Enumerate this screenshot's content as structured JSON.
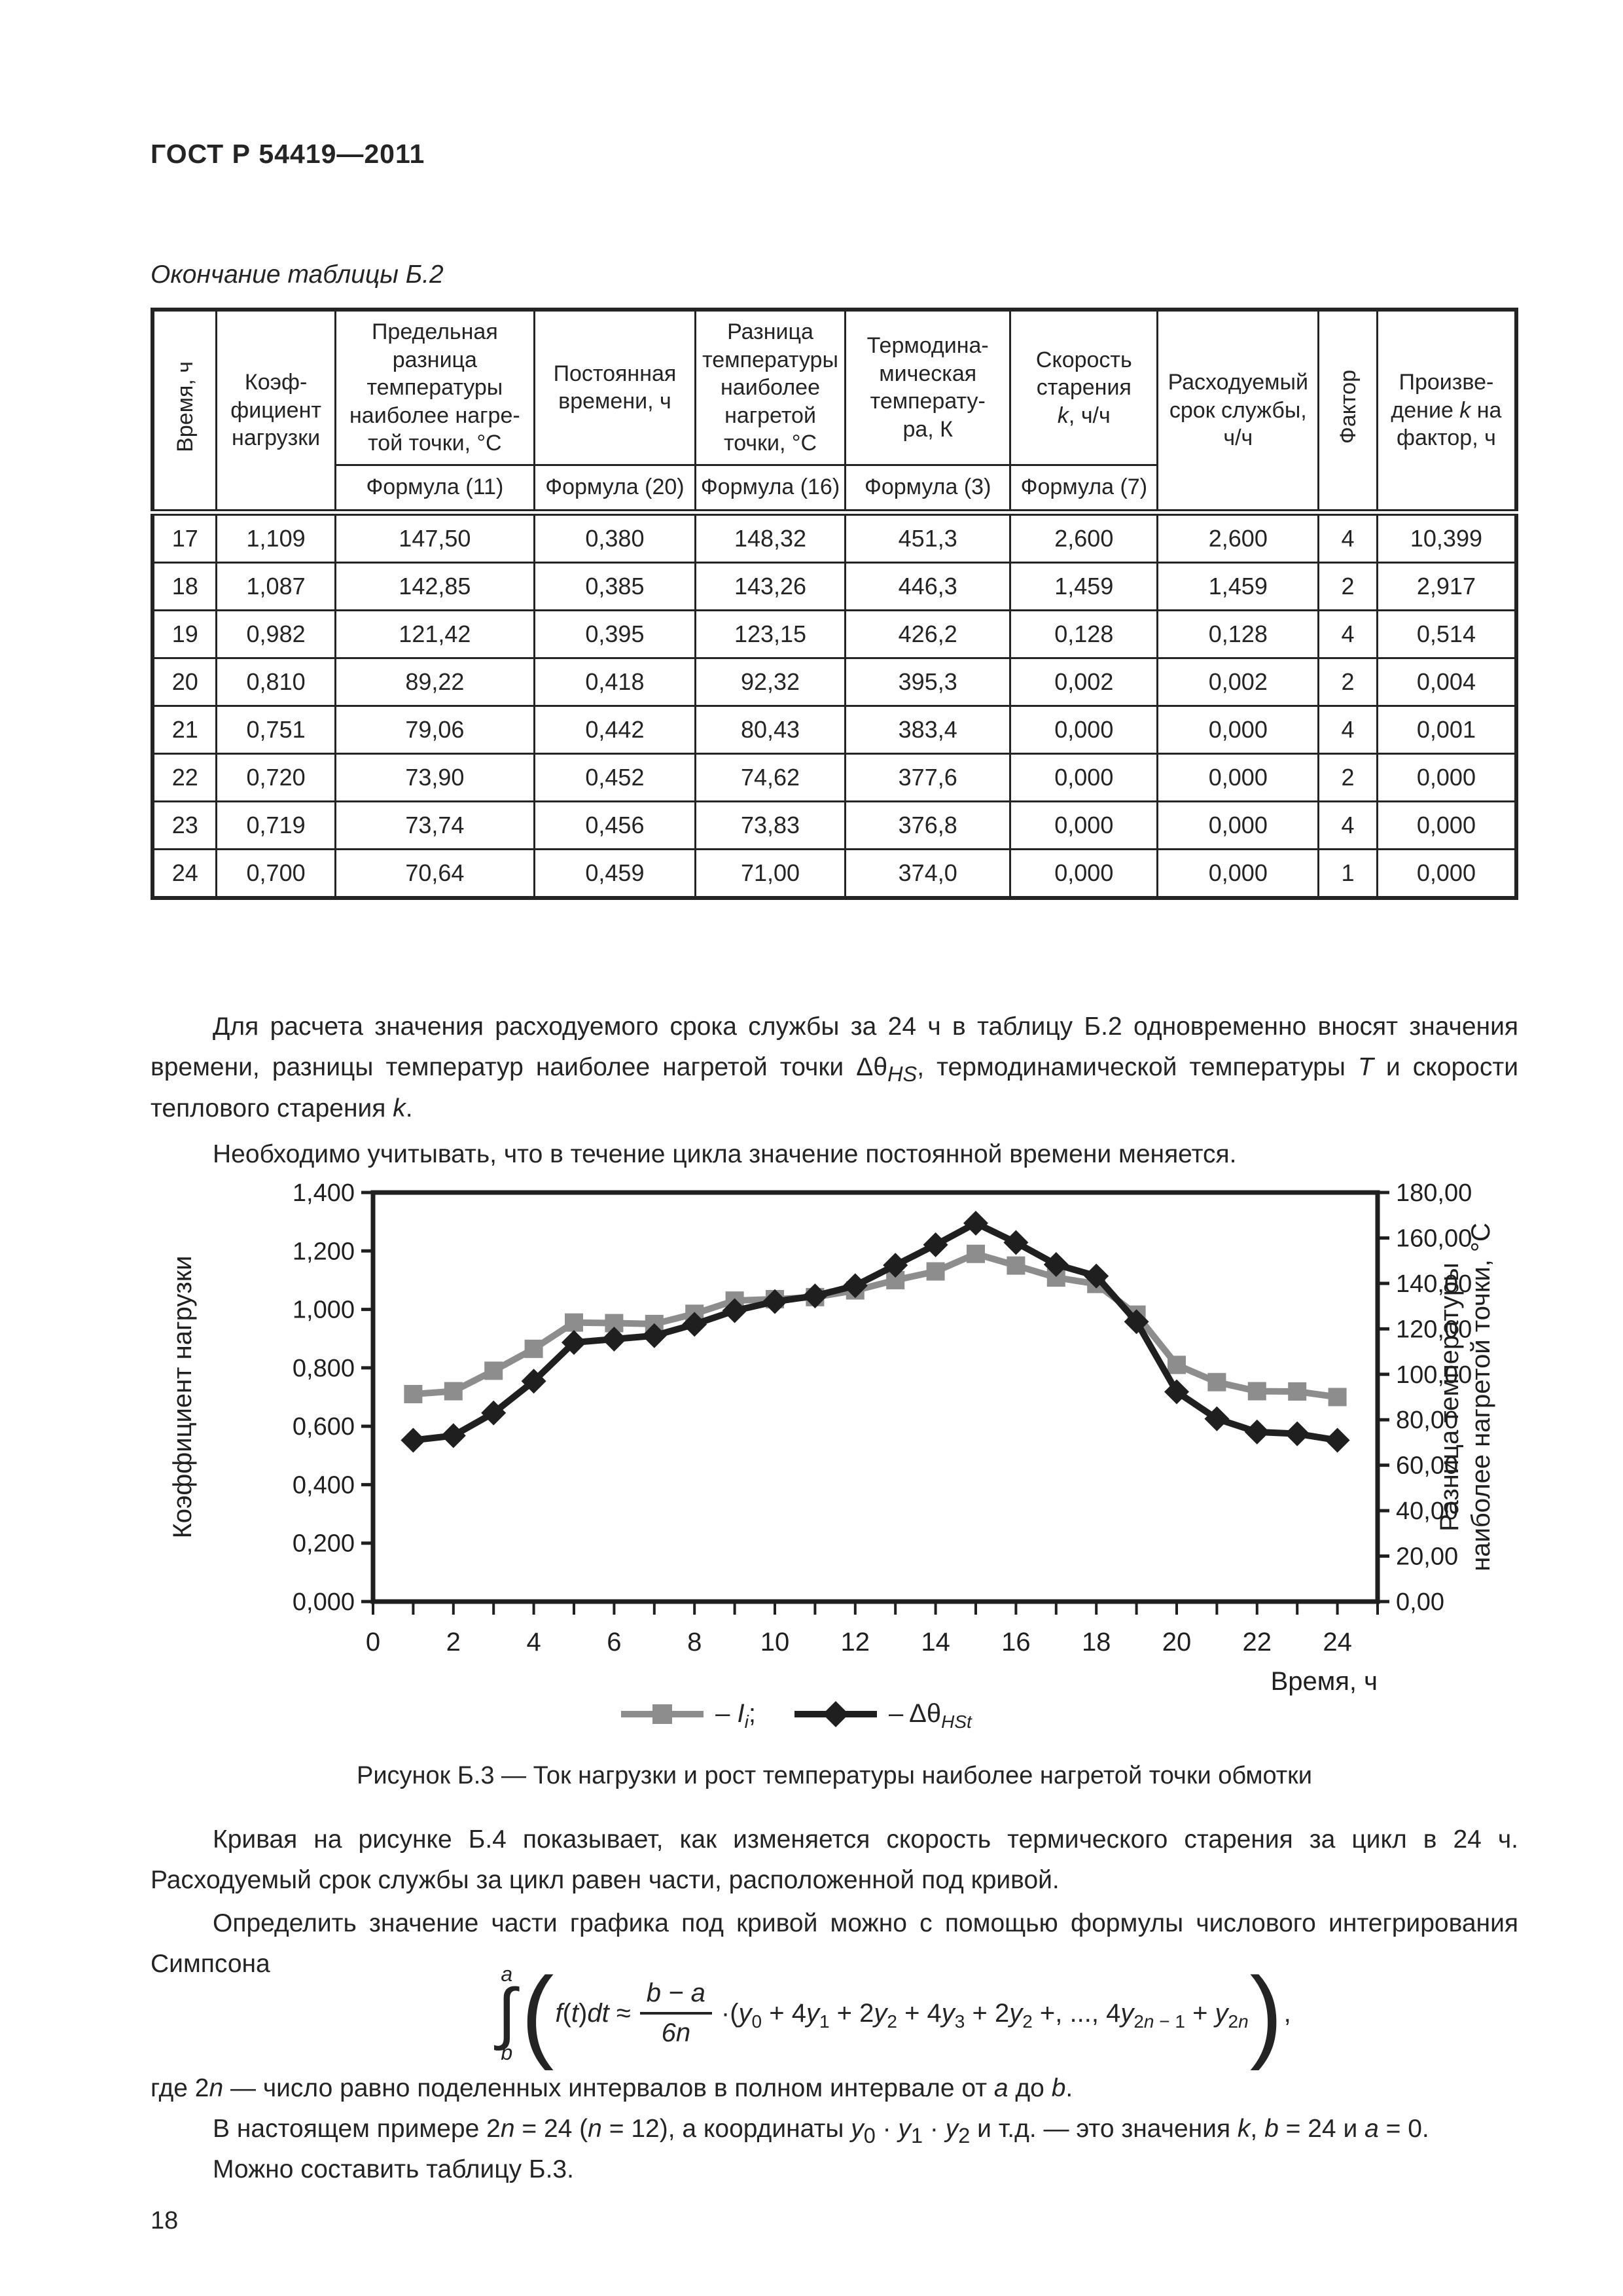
{
  "page": {
    "title": "ГОСТ Р 54419—2011",
    "number": "18"
  },
  "table": {
    "caption": "Окончание таблицы Б.2",
    "columns": [
      {
        "html": "Время, ч",
        "rotated": true
      },
      {
        "html": "Коэф-<br>фициент<br>нагрузки"
      },
      {
        "html": "Предельная<br>разница<br>температуры<br>наиболее нагре-<br>той точки, °С",
        "formula": "Формула (11)"
      },
      {
        "html": "Постоянная<br>времени, ч",
        "formula": "Формула (20)"
      },
      {
        "html": "Разница<br>температуры<br>наиболее<br>нагретой<br>точки, °С",
        "formula": "Формула (16)"
      },
      {
        "html": "Термодина-<br>мическая<br>температу-<br>ра, К",
        "formula": "Формула (3)"
      },
      {
        "html": "Скорость<br>старения<br><i>k</i>, ч/ч",
        "formula": "Формула (7)"
      },
      {
        "html": "Расходуемый<br>срок службы,<br>ч/ч"
      },
      {
        "html": "Фактор",
        "rotated": true
      },
      {
        "html": "Произве-<br>дение <i>k</i> на<br>фактор, ч"
      }
    ],
    "col_widths_pct": [
      4.7,
      8.7,
      14.6,
      11.8,
      11.0,
      12.1,
      10.8,
      11.8,
      4.3,
      10.2
    ],
    "rows": [
      [
        "17",
        "1,109",
        "147,50",
        "0,380",
        "148,32",
        "451,3",
        "2,600",
        "2,600",
        "4",
        "10,399"
      ],
      [
        "18",
        "1,087",
        "142,85",
        "0,385",
        "143,26",
        "446,3",
        "1,459",
        "1,459",
        "2",
        "2,917"
      ],
      [
        "19",
        "0,982",
        "121,42",
        "0,395",
        "123,15",
        "426,2",
        "0,128",
        "0,128",
        "4",
        "0,514"
      ],
      [
        "20",
        "0,810",
        "89,22",
        "0,418",
        "92,32",
        "395,3",
        "0,002",
        "0,002",
        "2",
        "0,004"
      ],
      [
        "21",
        "0,751",
        "79,06",
        "0,442",
        "80,43",
        "383,4",
        "0,000",
        "0,000",
        "4",
        "0,001"
      ],
      [
        "22",
        "0,720",
        "73,90",
        "0,452",
        "74,62",
        "377,6",
        "0,000",
        "0,000",
        "2",
        "0,000"
      ],
      [
        "23",
        "0,719",
        "73,74",
        "0,456",
        "73,83",
        "376,8",
        "0,000",
        "0,000",
        "4",
        "0,000"
      ],
      [
        "24",
        "0,700",
        "70,64",
        "0,459",
        "71,00",
        "374,0",
        "0,000",
        "0,000",
        "1",
        "0,000"
      ]
    ]
  },
  "paragraphs": {
    "p1_html": "Для расчета значения расходуемого срока службы за 24 ч в таблицу Б.2 одновременно вносят значения времени, разницы температур наиболее нагретой точки Δθ<sub><i>HS</i></sub>, термодинамической температуры <i>T</i> и скорости теплового старения <i>k</i>.",
    "p2": "Необходимо учитывать, что в течение цикла значение постоянной времени меняется.",
    "p3": "Кривая на рисунке Б.4 показывает, как изменяется скорость термического старения за цикл в 24 ч. Расходуемый срок службы за цикл равен части, расположенной под кривой.",
    "p4": "Определить значение части графика под кривой можно с помощью формулы числового интегрирования Симпсона"
  },
  "figure": {
    "caption": "Рисунок Б.3 — Ток нагрузки и рост температуры наиболее нагретой точки обмотки"
  },
  "chart_data": {
    "type": "line",
    "x": [
      1,
      2,
      3,
      4,
      5,
      6,
      7,
      8,
      9,
      10,
      11,
      12,
      13,
      14,
      15,
      16,
      17,
      18,
      19,
      20,
      21,
      22,
      23,
      24
    ],
    "series": [
      {
        "name": "Ii (коэффициент нагрузки)",
        "axis": "left",
        "color": "#8d8d8d",
        "marker": "square",
        "values": [
          0.71,
          0.72,
          0.79,
          0.865,
          0.955,
          0.953,
          0.95,
          0.985,
          1.03,
          1.035,
          1.042,
          1.065,
          1.1,
          1.13,
          1.19,
          1.15,
          1.109,
          1.087,
          0.982,
          0.81,
          0.751,
          0.72,
          0.719,
          0.7
        ]
      },
      {
        "name": "ΔθHSt (разница температуры, °С)",
        "axis": "right",
        "color": "#1f1f1f",
        "marker": "diamond",
        "values": [
          71.0,
          73.0,
          83.0,
          97.0,
          114.0,
          115.5,
          117.0,
          122.0,
          128.0,
          132.0,
          134.5,
          139.0,
          148.0,
          157.0,
          166.5,
          158.0,
          148.32,
          143.26,
          123.15,
          92.32,
          80.43,
          74.62,
          73.83,
          71.0
        ]
      }
    ],
    "left_axis": {
      "label": "Коэффициент нагрузки",
      "min": 0,
      "max": 1.4,
      "tick_labels": [
        "0,000",
        "0,200",
        "0,400",
        "0,600",
        "0,800",
        "1,000",
        "1,200",
        "1,400"
      ]
    },
    "right_axis": {
      "label_line1": "Разница температуры",
      "label_line2": "наиболее нагретой точки, °С",
      "min": 0,
      "max": 180,
      "tick_labels": [
        "0,00",
        "20,00",
        "40,00",
        "60,00",
        "80,00",
        "100,00",
        "120,00",
        "140,00",
        "160,00",
        "180,00"
      ]
    },
    "x_axis": {
      "label": "Время, ч",
      "min": 0,
      "max": 25,
      "tick_step": 1,
      "tick_labels": [
        "0",
        "2",
        "4",
        "6",
        "8",
        "10",
        "12",
        "14",
        "16",
        "18",
        "20",
        "22",
        "24"
      ]
    },
    "grid": false,
    "legend_position": "bottom",
    "legend": [
      {
        "marker": "square",
        "color": "#8d8d8d",
        "label_html": "– <i>I<sub>i</sub></i>;"
      },
      {
        "marker": "diamond",
        "color": "#1f1f1f",
        "label_html": "– Δθ<sub><i>HSt</i></sub>"
      }
    ]
  },
  "formula": {
    "int_upper": "a",
    "int_sign": "∫",
    "int_lower": "b",
    "open_paren": "(",
    "lhs_html": "<i>f</i>(<i>t</i>)<i>dt</i> ≈",
    "frac_num_html": "<i>b</i> − <i>a</i>",
    "frac_den_html": "6<i>n</i>",
    "rhs_html": "·(<i>y</i><sub>0</sub> + 4<i>y</i><sub>1</sub> + 2<i>y</i><sub>2</sub> + 4<i>y</i><sub>3</sub> + 2<i>y</i><sub>2</sub> +, ..., 4<i>y</i><sub>2<i>n</i> − 1</sub> + <i>y</i><sub>2<i>n</i></sub>",
    "close_paren": ")",
    "trailing": ","
  },
  "notes": {
    "where_html": "где 2<i>n</i> — число равно поделенных интервалов в полном интервале от <i>a</i> до <i>b</i>.",
    "example_html": "В настоящем примере 2<i>n</i> = 24 (<i>n</i> = 12), а координаты <i>y</i><sub>0</sub> · <i>y</i><sub>1</sub> · <i>y</i><sub>2</sub> и т.д. — это значения <i>k</i>, <i>b</i> = 24 и <i>a</i> = 0.",
    "final": "Можно составить таблицу Б.3."
  }
}
